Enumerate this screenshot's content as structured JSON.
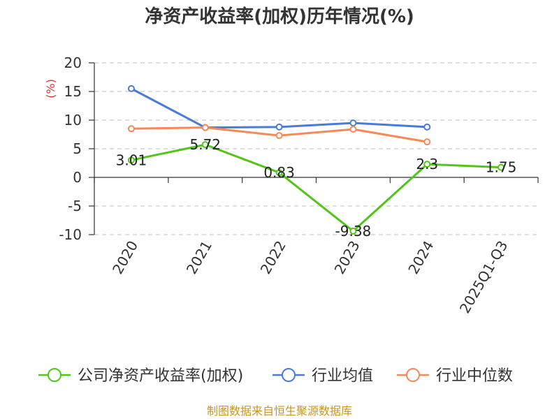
{
  "chart_data": {
    "type": "line",
    "title": "净资产收益率(加权)历年情况(%)",
    "ylabel": "(%)",
    "xlabel": "",
    "categories": [
      "2020",
      "2021",
      "2022",
      "2023",
      "2024",
      "2025Q1-Q3"
    ],
    "ylim": [
      -10,
      20
    ],
    "yticks": [
      20,
      15,
      10,
      5,
      0,
      -5,
      -10
    ],
    "ytick_labels": [
      "20",
      "15",
      "10",
      "5",
      "0",
      "-5",
      "-10"
    ],
    "grid": true,
    "legend_placement": "bottom",
    "series": [
      {
        "name": "公司净资产收益率(加权)",
        "color": "#52c41a",
        "values": [
          3.01,
          5.72,
          0.83,
          -9.38,
          2.3,
          1.75
        ],
        "data_labels": [
          "3.01",
          "5.72",
          "0.83",
          "-9.38",
          "2.3",
          "1.75"
        ]
      },
      {
        "name": "行业均值",
        "color": "#4a7bd8",
        "values": [
          15.5,
          8.7,
          8.8,
          9.5,
          8.8,
          null
        ]
      },
      {
        "name": "行业中位数",
        "color": "#f5895a",
        "values": [
          8.5,
          8.7,
          7.3,
          8.4,
          6.2,
          null
        ]
      }
    ]
  },
  "source": {
    "text": "制图数据来自恒生聚源数据库",
    "color": "#c8951f"
  },
  "ylabel_color": "#e03131"
}
